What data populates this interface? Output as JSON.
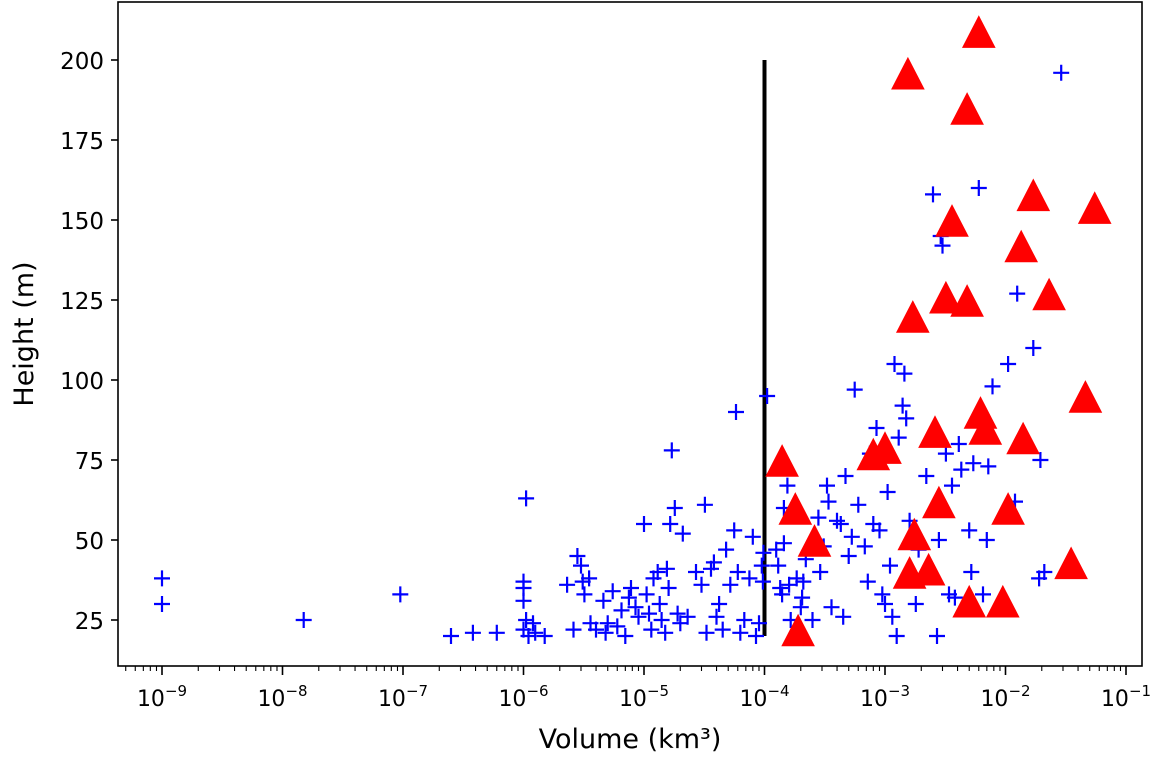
{
  "chart_data": {
    "type": "scatter",
    "title": "",
    "xlabel": "Volume (km³)",
    "ylabel": "Height (m)",
    "x_scale": "log",
    "xlim": [
      3e-10,
      0.12
    ],
    "ylim": [
      10,
      215
    ],
    "x_tick_labels": [
      {
        "value": 1e-09,
        "base": "10",
        "exp": "−9"
      },
      {
        "value": 1e-08,
        "base": "10",
        "exp": "−8"
      },
      {
        "value": 1e-07,
        "base": "10",
        "exp": "−7"
      },
      {
        "value": 1e-06,
        "base": "10",
        "exp": "−6"
      },
      {
        "value": 1e-05,
        "base": "10",
        "exp": "−5"
      },
      {
        "value": 0.0001,
        "base": "10",
        "exp": "−4"
      },
      {
        "value": 0.001,
        "base": "10",
        "exp": "−3"
      },
      {
        "value": 0.01,
        "base": "10",
        "exp": "−2"
      },
      {
        "value": 0.1,
        "base": "10",
        "exp": "−1"
      }
    ],
    "y_ticks": [
      25,
      50,
      75,
      100,
      125,
      150,
      175,
      200
    ],
    "y_tick_labels": [
      "25",
      "50",
      "75",
      "100",
      "125",
      "150",
      "175",
      "200"
    ],
    "grid": false,
    "legend": null,
    "threshold_line": {
      "x": 0.0001,
      "y_from": 20,
      "y_to": 200,
      "color": "#000000"
    },
    "series": [
      {
        "marker": "plus",
        "color": "#0000ff",
        "points": [
          [
            1e-09,
            38
          ],
          [
            1e-09,
            30
          ],
          [
            1.5e-08,
            25
          ],
          [
            9.5e-08,
            33
          ],
          [
            2.5e-07,
            20
          ],
          [
            3.8e-07,
            21
          ],
          [
            6e-07,
            21
          ],
          [
            1.05e-06,
            63
          ],
          [
            1e-06,
            37
          ],
          [
            1e-06,
            35
          ],
          [
            1e-06,
            31
          ],
          [
            1.05e-06,
            25
          ],
          [
            1e-06,
            22
          ],
          [
            1.1e-06,
            20
          ],
          [
            1.2e-06,
            24
          ],
          [
            1.25e-06,
            21
          ],
          [
            1.5e-06,
            20
          ],
          [
            2.3e-06,
            36
          ],
          [
            2.6e-06,
            22
          ],
          [
            2.8e-06,
            45
          ],
          [
            3e-06,
            42
          ],
          [
            3.1e-06,
            37
          ],
          [
            3.2e-06,
            33
          ],
          [
            3.5e-06,
            38
          ],
          [
            3.6e-06,
            24
          ],
          [
            4e-06,
            22
          ],
          [
            4.6e-06,
            31
          ],
          [
            4.8e-06,
            21
          ],
          [
            5e-06,
            24
          ],
          [
            5.5e-06,
            34
          ],
          [
            6e-06,
            23
          ],
          [
            6.5e-06,
            28
          ],
          [
            7e-06,
            20
          ],
          [
            7.5e-06,
            32
          ],
          [
            7.8e-06,
            35
          ],
          [
            8.5e-06,
            29
          ],
          [
            9e-06,
            26
          ],
          [
            1e-05,
            55
          ],
          [
            1.05e-05,
            33
          ],
          [
            1.1e-05,
            27
          ],
          [
            1.15e-05,
            22
          ],
          [
            1.2e-05,
            38
          ],
          [
            1.3e-05,
            40
          ],
          [
            1.35e-05,
            30
          ],
          [
            1.4e-05,
            25
          ],
          [
            1.5e-05,
            21
          ],
          [
            1.55e-05,
            41
          ],
          [
            1.6e-05,
            35
          ],
          [
            1.65e-05,
            55
          ],
          [
            1.7e-05,
            78
          ],
          [
            1.8e-05,
            60
          ],
          [
            1.9e-05,
            27
          ],
          [
            2e-05,
            24
          ],
          [
            2.1e-05,
            52
          ],
          [
            2.3e-05,
            26
          ],
          [
            2.7e-05,
            40
          ],
          [
            3e-05,
            36
          ],
          [
            3.2e-05,
            61
          ],
          [
            3.3e-05,
            21
          ],
          [
            3.6e-05,
            41
          ],
          [
            3.8e-05,
            43
          ],
          [
            4e-05,
            26
          ],
          [
            4.2e-05,
            30
          ],
          [
            4.5e-05,
            22
          ],
          [
            4.8e-05,
            47
          ],
          [
            5.2e-05,
            36
          ],
          [
            5.6e-05,
            53
          ],
          [
            5.8e-05,
            90
          ],
          [
            6e-05,
            40
          ],
          [
            6.3e-05,
            21
          ],
          [
            6.8e-05,
            25
          ],
          [
            7.5e-05,
            38
          ],
          [
            8e-05,
            51
          ],
          [
            8.5e-05,
            20
          ],
          [
            9e-05,
            24
          ],
          [
            9.5e-05,
            42
          ],
          [
            9.7e-05,
            37
          ],
          [
            9.8e-05,
            46
          ],
          [
            0.000105,
            95
          ],
          [
            0.000125,
            47
          ],
          [
            0.00013,
            42
          ],
          [
            0.000135,
            35
          ],
          [
            0.00014,
            33
          ],
          [
            0.000145,
            49
          ],
          [
            0.000145,
            60
          ],
          [
            0.000155,
            67
          ],
          [
            0.00016,
            36
          ],
          [
            0.000165,
            25
          ],
          [
            0.000185,
            38
          ],
          [
            0.0002,
            29
          ],
          [
            0.000205,
            32
          ],
          [
            0.00021,
            37
          ],
          [
            0.00022,
            44
          ],
          [
            0.00025,
            25
          ],
          [
            0.00028,
            57
          ],
          [
            0.00029,
            40
          ],
          [
            0.00031,
            48
          ],
          [
            0.00033,
            67
          ],
          [
            0.00034,
            62
          ],
          [
            0.00036,
            29
          ],
          [
            0.0004,
            56
          ],
          [
            0.00043,
            55
          ],
          [
            0.00045,
            26
          ],
          [
            0.00047,
            70
          ],
          [
            0.0005,
            45
          ],
          [
            0.00053,
            51
          ],
          [
            0.00056,
            97
          ],
          [
            0.0006,
            61
          ],
          [
            0.00068,
            48
          ],
          [
            0.00072,
            37
          ],
          [
            0.00075,
            77
          ],
          [
            0.0008,
            55
          ],
          [
            0.00085,
            85
          ],
          [
            0.0009,
            53
          ],
          [
            0.00095,
            33
          ],
          [
            0.001,
            30
          ],
          [
            0.00105,
            65
          ],
          [
            0.0011,
            42
          ],
          [
            0.00115,
            26
          ],
          [
            0.0012,
            105
          ],
          [
            0.00125,
            20
          ],
          [
            0.0013,
            82
          ],
          [
            0.0014,
            92
          ],
          [
            0.00145,
            102
          ],
          [
            0.0015,
            88
          ],
          [
            0.0016,
            56
          ],
          [
            0.0018,
            30
          ],
          [
            0.0019,
            47
          ],
          [
            0.0022,
            70
          ],
          [
            0.0025,
            158
          ],
          [
            0.0027,
            20
          ],
          [
            0.0028,
            50
          ],
          [
            0.0029,
            145
          ],
          [
            0.003,
            142
          ],
          [
            0.0032,
            77
          ],
          [
            0.0034,
            33
          ],
          [
            0.0036,
            67
          ],
          [
            0.0038,
            32
          ],
          [
            0.0041,
            80
          ],
          [
            0.0043,
            72
          ],
          [
            0.005,
            53
          ],
          [
            0.0052,
            40
          ],
          [
            0.0054,
            74
          ],
          [
            0.006,
            160
          ],
          [
            0.0065,
            33
          ],
          [
            0.007,
            50
          ],
          [
            0.0072,
            73
          ],
          [
            0.0078,
            98
          ],
          [
            0.0105,
            105
          ],
          [
            0.012,
            62
          ],
          [
            0.0125,
            127
          ],
          [
            0.017,
            110
          ],
          [
            0.019,
            38
          ],
          [
            0.0195,
            75
          ],
          [
            0.021,
            40
          ],
          [
            0.029,
            196
          ]
        ]
      },
      {
        "marker": "triangle",
        "color": "#ff0000",
        "points": [
          [
            0.00014,
            74
          ],
          [
            0.00018,
            59
          ],
          [
            0.00019,
            21
          ],
          [
            0.00026,
            49
          ],
          [
            0.0008,
            76
          ],
          [
            0.001,
            78
          ],
          [
            0.00155,
            195
          ],
          [
            0.0016,
            39
          ],
          [
            0.0017,
            119
          ],
          [
            0.00175,
            51
          ],
          [
            0.0023,
            40
          ],
          [
            0.0026,
            83
          ],
          [
            0.0028,
            61
          ],
          [
            0.0032,
            125
          ],
          [
            0.0036,
            149
          ],
          [
            0.0048,
            184
          ],
          [
            0.005,
            30
          ],
          [
            0.0048,
            124
          ],
          [
            0.006,
            208
          ],
          [
            0.0062,
            89
          ],
          [
            0.0068,
            84
          ],
          [
            0.0095,
            30
          ],
          [
            0.0105,
            59
          ],
          [
            0.0135,
            141
          ],
          [
            0.014,
            81
          ],
          [
            0.017,
            157
          ],
          [
            0.023,
            126
          ],
          [
            0.035,
            42
          ],
          [
            0.046,
            94
          ],
          [
            0.055,
            153
          ]
        ]
      }
    ]
  }
}
